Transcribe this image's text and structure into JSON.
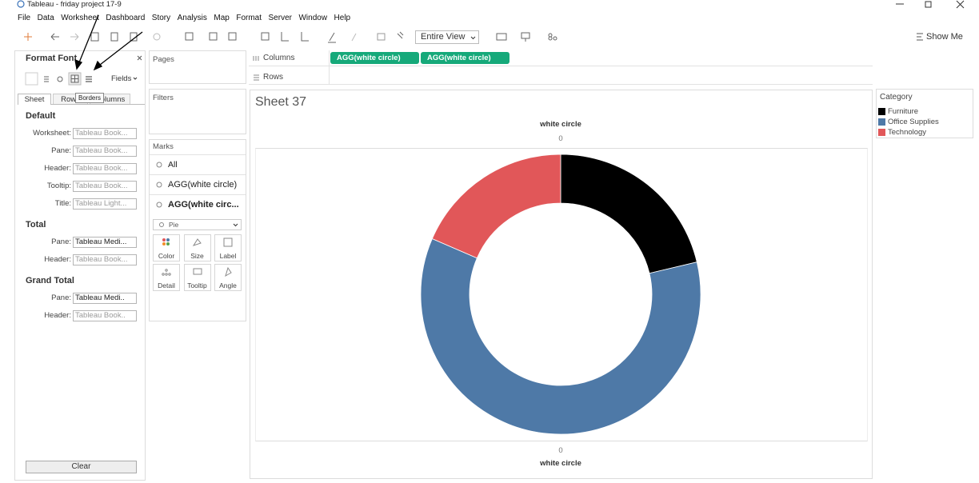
{
  "window_title": "Tableau - friday project 17-9",
  "menu": [
    "File",
    "Data",
    "Worksheet",
    "Dashboard",
    "Story",
    "Analysis",
    "Map",
    "Format",
    "Server",
    "Window",
    "Help"
  ],
  "toolbar": {
    "view_mode": "Entire View",
    "show_me": "Show Me"
  },
  "format_pane": {
    "title": "Format Font",
    "fields": "Fields",
    "tooltip": "Borders",
    "tabs": [
      "Sheet",
      "Rows",
      "Columns"
    ],
    "sections": [
      {
        "title": "Default",
        "rows": [
          {
            "label": "Worksheet:",
            "value": "Tableau Book..."
          },
          {
            "label": "Pane:",
            "value": "Tableau Book..."
          },
          {
            "label": "Header:",
            "value": "Tableau Book..."
          },
          {
            "label": "Tooltip:",
            "value": "Tableau Book..."
          },
          {
            "label": "Title:",
            "value": "Tableau Light..."
          }
        ]
      },
      {
        "title": "Total",
        "rows": [
          {
            "label": "Pane:",
            "value": "Tableau Medi..."
          },
          {
            "label": "Header:",
            "value": "Tableau Book..."
          }
        ]
      },
      {
        "title": "Grand Total",
        "rows": [
          {
            "label": "Pane:",
            "value": "Tableau Medi.."
          },
          {
            "label": "Header:",
            "value": "Tableau Book.."
          }
        ]
      }
    ],
    "clear": "Clear"
  },
  "pages": "Pages",
  "filters": "Filters",
  "marks": {
    "title": "Marks",
    "cards": [
      "All",
      "AGG(white circle)",
      "AGG(white circ..."
    ],
    "mark_type": "Pie",
    "buttons": [
      "Color",
      "Size",
      "Label",
      "Detail",
      "Tooltip",
      "Angle"
    ]
  },
  "shelves": {
    "columns": "Columns",
    "column_pills": [
      "AGG(white circle)",
      "AGG(white circle)"
    ],
    "rows": "Rows"
  },
  "sheet": {
    "title": "Sheet 37",
    "header_top": "white circle",
    "tick_top": 0,
    "tick_bottom": 0,
    "header_bottom": "white circle",
    "chart": {
      "type": "pie",
      "donut": true,
      "categories": [
        "Furniture",
        "Office Supplies",
        "Technology"
      ],
      "values": [
        21.3,
        60.2,
        18.5
      ],
      "colors": [
        "#000000",
        "#4e79a7",
        "#e15759"
      ]
    }
  },
  "legend": {
    "title": "Category"
  }
}
